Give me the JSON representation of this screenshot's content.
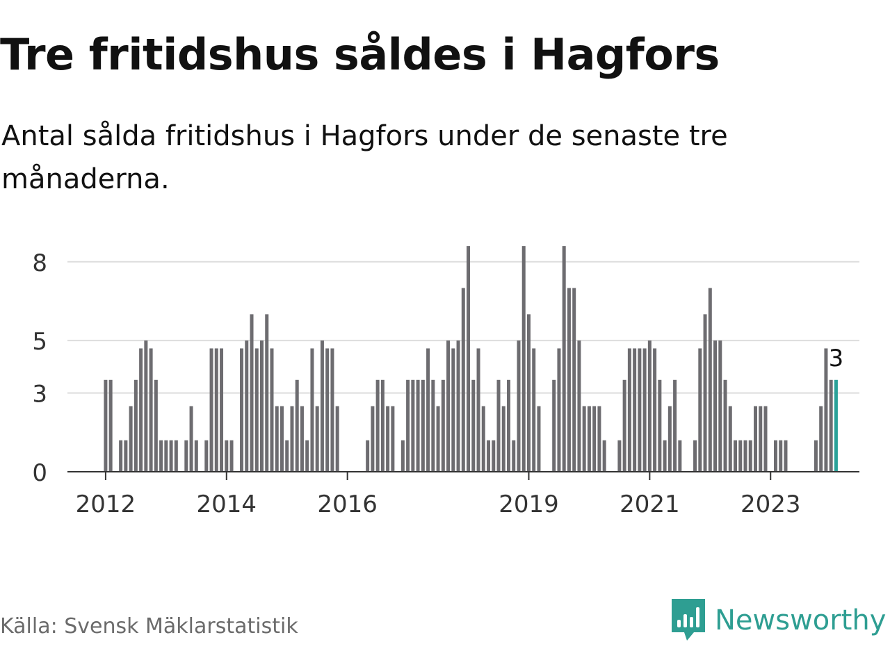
{
  "header": {
    "title": "Tre fritidshus såldes i Hagfors",
    "subtitle": "Antal sålda fritidshus i Hagfors under de senaste tre månaderna."
  },
  "footer": {
    "source": "Källa: Svensk Mäklarstatistik",
    "brand": "Newsworthy",
    "brand_icon": "bar-chart-speech-bubble-icon"
  },
  "colors": {
    "bar": "#6d6c70",
    "highlight": "#2aa198",
    "brand": "#2e9e92",
    "grid": "#dddddd",
    "axis": "#333333"
  },
  "chart_data": {
    "type": "bar",
    "title": "Tre fritidshus såldes i Hagfors",
    "subtitle": "Antal sålda fritidshus i Hagfors under de senaste tre månaderna.",
    "xlabel": "",
    "ylabel": "",
    "ylim": [
      0,
      9
    ],
    "yticks": [
      0,
      3,
      5,
      8
    ],
    "xticks": [
      {
        "label": "2012",
        "index": 0
      },
      {
        "label": "2014",
        "index": 24
      },
      {
        "label": "2016",
        "index": 48
      },
      {
        "label": "2019",
        "index": 84
      },
      {
        "label": "2021",
        "index": 108
      },
      {
        "label": "2023",
        "index": 132
      }
    ],
    "start_period": "2012-01",
    "grid": true,
    "legend": "none",
    "highlight_label": "3",
    "values": [
      3.5,
      3.5,
      0,
      1.2,
      1.2,
      2.5,
      3.5,
      4.7,
      5.0,
      4.7,
      3.5,
      1.2,
      1.2,
      1.2,
      1.2,
      0,
      1.2,
      2.5,
      1.2,
      0,
      1.2,
      4.7,
      4.7,
      4.7,
      1.2,
      1.2,
      0,
      4.7,
      5.0,
      6.0,
      4.7,
      5.0,
      6.0,
      4.7,
      2.5,
      2.5,
      1.2,
      2.5,
      3.5,
      2.5,
      1.2,
      4.7,
      2.5,
      5.0,
      4.7,
      4.7,
      2.5,
      0,
      0,
      0,
      0,
      0,
      1.2,
      2.5,
      3.5,
      3.5,
      2.5,
      2.5,
      0,
      1.2,
      3.5,
      3.5,
      3.5,
      3.5,
      4.7,
      3.5,
      2.5,
      3.5,
      5.0,
      4.7,
      5.0,
      7.0,
      8.6,
      3.5,
      4.7,
      2.5,
      1.2,
      1.2,
      3.5,
      2.5,
      3.5,
      1.2,
      5.0,
      8.6,
      6.0,
      4.7,
      2.5,
      0,
      0,
      3.5,
      4.7,
      8.6,
      7.0,
      7.0,
      5.0,
      2.5,
      2.5,
      2.5,
      2.5,
      1.2,
      0,
      0,
      1.2,
      3.5,
      4.7,
      4.7,
      4.7,
      4.7,
      5.0,
      4.7,
      3.5,
      1.2,
      2.5,
      3.5,
      1.2,
      0,
      0,
      1.2,
      4.7,
      6.0,
      7.0,
      5.0,
      5.0,
      3.5,
      2.5,
      1.2,
      1.2,
      1.2,
      1.2,
      2.5,
      2.5,
      2.5,
      0,
      1.2,
      1.2,
      1.2,
      0,
      0,
      0,
      0,
      0,
      1.2,
      2.5,
      4.7,
      3.5,
      3.5
    ]
  }
}
